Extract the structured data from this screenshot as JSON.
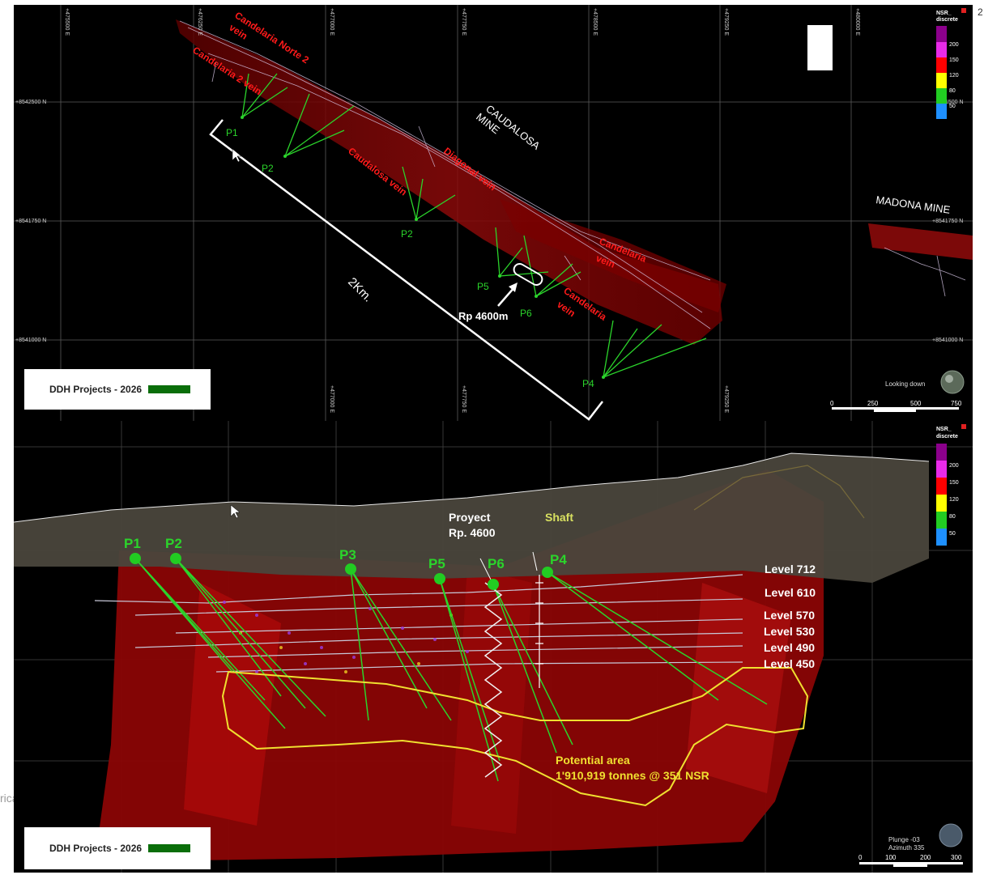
{
  "page_number": "2",
  "side_text": "rical",
  "legend": {
    "label": "DDH Projects - 2026",
    "swatch_color": "#0a6e0a"
  },
  "nsr_scale": {
    "title_line1": "NSR_",
    "title_line2": "discrete",
    "entries": [
      {
        "value": "200",
        "color": "#8b008b"
      },
      {
        "value": "150",
        "color": "#e82ae8"
      },
      {
        "value": "120",
        "color": "#ff0000"
      },
      {
        "value": "80",
        "color": "#ffff00"
      },
      {
        "value": "50",
        "color": "#22cc22"
      },
      {
        "value": "",
        "color": "#1e90ff"
      }
    ]
  },
  "plan_view": {
    "easting_ticks": [
      "+475500 E",
      "+476250 E",
      "+477000 E",
      "+477750 E",
      "+478500 E",
      "+479250 E",
      "+480000 E"
    ],
    "northing_ticks": [
      "+8542500 N",
      "+8541750 N",
      "+8541000 N"
    ],
    "stray_tick": "1500 N",
    "vein_labels": {
      "norte2": "Candelaria Norte 2",
      "norte2_b": "vein",
      "cand2": "Candelaria 2 vein",
      "caudalosa_vein": "Caudalosa vein",
      "diagonal": "Diagonal vein",
      "candelaria1_a": "Candelaria",
      "candelaria1_b": "vein",
      "candelaria2_a": "Candelaria",
      "candelaria2_b": "vein"
    },
    "mine_labels": {
      "caudalosa_a": "CAUDALOSA",
      "caudalosa_b": "MINE",
      "madona": "MADONA MINE"
    },
    "drill_labels": [
      "P1",
      "P2",
      "P2",
      "P5",
      "P6",
      "P4"
    ],
    "distance_label": "2Km.",
    "ramp_label": "Rp 4600m",
    "compass_label": "Looking down",
    "scale_ticks": [
      "0",
      "250",
      "500",
      "750"
    ]
  },
  "section_view": {
    "drill_labels": [
      "P1",
      "P2",
      "P3",
      "P5",
      "P6",
      "P4"
    ],
    "project_label_a": "Proyect",
    "project_label_b": "Rp. 4600",
    "shaft_label": "Shaft",
    "levels": [
      "Level 712",
      "Level 610",
      "Level 570",
      "Level 530",
      "Level 490",
      "Level 450"
    ],
    "potential_a": "Potential area",
    "potential_b": "1'910,919 tonnes @ 351 NSR",
    "plunge": "Plunge -03",
    "azimuth": "Azimuth 335",
    "scale_ticks": [
      "0",
      "100",
      "200",
      "300"
    ]
  }
}
